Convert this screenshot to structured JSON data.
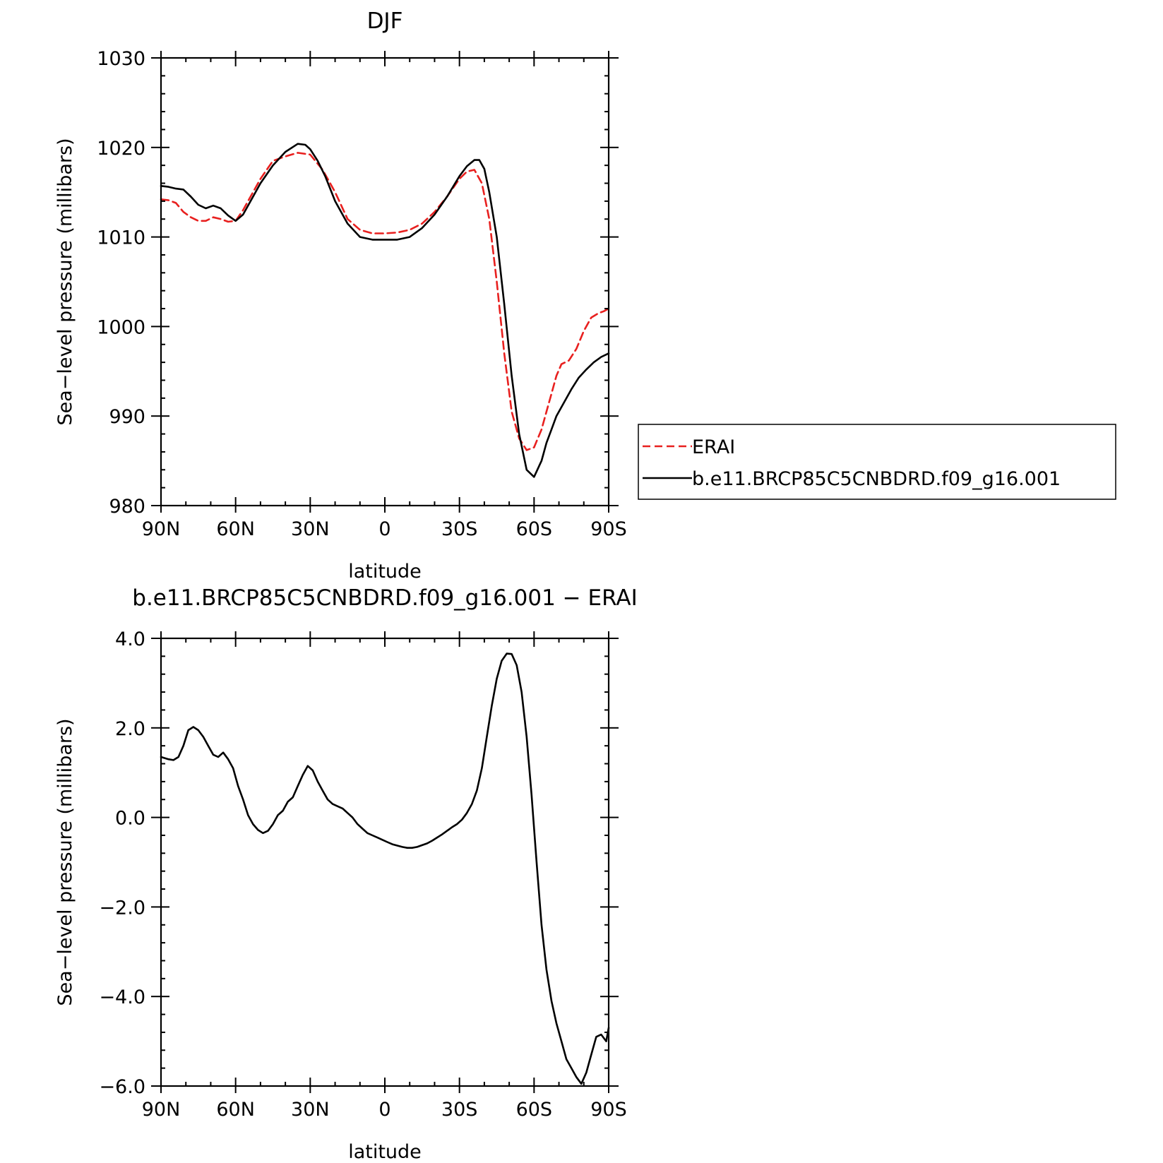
{
  "chart_data": [
    {
      "type": "line",
      "title": "DJF",
      "xlabel": "latitude",
      "ylabel": "Sea−level pressure (millibars)",
      "x_ticks": [
        {
          "value": 90,
          "label": "90N"
        },
        {
          "value": 60,
          "label": "60N"
        },
        {
          "value": 30,
          "label": "30N"
        },
        {
          "value": 0,
          "label": "0"
        },
        {
          "value": -30,
          "label": "30S"
        },
        {
          "value": -60,
          "label": "60S"
        },
        {
          "value": -90,
          "label": "90S"
        }
      ],
      "xlim": [
        90,
        -90
      ],
      "ylim": [
        980,
        1030
      ],
      "y_ticks": [
        {
          "value": 980,
          "label": "980"
        },
        {
          "value": 990,
          "label": "990"
        },
        {
          "value": 1000,
          "label": "1000"
        },
        {
          "value": 1010,
          "label": "1010"
        },
        {
          "value": 1020,
          "label": "1020"
        },
        {
          "value": 1030,
          "label": "1030"
        }
      ],
      "legend": {
        "position": "right",
        "entries": [
          "ERAI",
          "b.e11.BRCP85C5CNBDRD.f09_g16.001"
        ]
      },
      "series": [
        {
          "name": "ERAI",
          "color": "#e8201f",
          "dash": "dashed",
          "x": [
            90,
            87,
            84,
            81,
            78,
            75,
            72,
            69,
            66,
            63,
            60,
            57,
            54,
            50,
            45,
            40,
            35,
            30,
            25,
            20,
            15,
            10,
            5,
            0,
            -5,
            -10,
            -15,
            -20,
            -25,
            -30,
            -33,
            -36,
            -39,
            -42,
            -45,
            -48,
            -51,
            -54,
            -57,
            -60,
            -63,
            -65,
            -67,
            -69,
            -71,
            -74,
            -77,
            -80,
            -83,
            -86,
            -88,
            -90
          ],
          "values": [
            1014.2,
            1014.1,
            1013.8,
            1012.8,
            1012.2,
            1011.8,
            1011.8,
            1012.2,
            1012.0,
            1011.7,
            1011.8,
            1013.0,
            1014.5,
            1016.5,
            1018.5,
            1019.0,
            1019.4,
            1019.2,
            1017.5,
            1015.0,
            1012.0,
            1010.8,
            1010.4,
            1010.4,
            1010.5,
            1010.8,
            1011.5,
            1012.8,
            1014.5,
            1016.5,
            1017.3,
            1017.5,
            1016.0,
            1012.0,
            1005.0,
            997.0,
            990.5,
            987.5,
            986.2,
            986.5,
            988.5,
            990.5,
            992.5,
            994.5,
            995.8,
            996.2,
            997.5,
            999.5,
            1001.0,
            1001.5,
            1001.7,
            1002.0
          ]
        },
        {
          "name": "b.e11.BRCP85C5CNBDRD.f09_g16.001",
          "color": "#000000",
          "dash": "solid",
          "x": [
            90,
            87,
            84,
            81,
            78,
            75,
            72,
            69,
            66,
            63,
            60,
            57,
            54,
            50,
            45,
            40,
            35,
            32,
            30,
            27,
            24,
            20,
            15,
            10,
            5,
            0,
            -5,
            -10,
            -15,
            -20,
            -25,
            -30,
            -33,
            -36,
            -38,
            -40,
            -42,
            -45,
            -48,
            -51,
            -54,
            -57,
            -60,
            -63,
            -65,
            -67,
            -69,
            -72,
            -75,
            -78,
            -81,
            -84,
            -87,
            -90
          ],
          "values": [
            1015.7,
            1015.6,
            1015.4,
            1015.3,
            1014.5,
            1013.6,
            1013.2,
            1013.5,
            1013.2,
            1012.4,
            1011.8,
            1012.5,
            1014.0,
            1016.0,
            1018.0,
            1019.5,
            1020.4,
            1020.3,
            1019.8,
            1018.5,
            1016.8,
            1014.0,
            1011.5,
            1010.0,
            1009.7,
            1009.7,
            1009.7,
            1010.0,
            1011.0,
            1012.5,
            1014.5,
            1016.8,
            1017.9,
            1018.6,
            1018.6,
            1017.6,
            1015.0,
            1010.0,
            1002.5,
            994.5,
            988.0,
            984.0,
            983.2,
            985.0,
            987.0,
            988.5,
            990.0,
            991.5,
            993.0,
            994.3,
            995.2,
            996.0,
            996.6,
            997.0
          ]
        }
      ]
    },
    {
      "type": "line",
      "title": "b.e11.BRCP85C5CNBDRD.f09_g16.001 − ERAI",
      "xlabel": "latitude",
      "ylabel": "Sea−level pressure (millibars)",
      "x_ticks": [
        {
          "value": 90,
          "label": "90N"
        },
        {
          "value": 60,
          "label": "60N"
        },
        {
          "value": 30,
          "label": "30N"
        },
        {
          "value": 0,
          "label": "0"
        },
        {
          "value": -30,
          "label": "30S"
        },
        {
          "value": -60,
          "label": "60S"
        },
        {
          "value": -90,
          "label": "90S"
        }
      ],
      "xlim": [
        90,
        -90
      ],
      "ylim": [
        -6,
        4
      ],
      "y_ticks": [
        {
          "value": -6,
          "label": "−6.0"
        },
        {
          "value": -4,
          "label": "−4.0"
        },
        {
          "value": -2,
          "label": "−2.0"
        },
        {
          "value": 0,
          "label": "0.0"
        },
        {
          "value": 2,
          "label": "2.0"
        },
        {
          "value": 4,
          "label": "4.0"
        }
      ],
      "series": [
        {
          "color": "#000000",
          "dash": "solid",
          "x": [
            90,
            87,
            85,
            83,
            81,
            79,
            77,
            75,
            73,
            71,
            69,
            67,
            65,
            63,
            61,
            59,
            57,
            55,
            53,
            51,
            49,
            47,
            45,
            43,
            41,
            39,
            37,
            35,
            33,
            31,
            29,
            27,
            25,
            23,
            21,
            19,
            17,
            15,
            13,
            11,
            9,
            7,
            5,
            3,
            1,
            -1,
            -3,
            -5,
            -7,
            -9,
            -11,
            -13,
            -15,
            -17,
            -19,
            -21,
            -23,
            -25,
            -27,
            -29,
            -31,
            -33,
            -35,
            -37,
            -39,
            -41,
            -43,
            -45,
            -47,
            -49,
            -51,
            -53,
            -55,
            -57,
            -59,
            -61,
            -63,
            -65,
            -67,
            -69,
            -71,
            -73,
            -75,
            -77,
            -79,
            -81,
            -83,
            -85,
            -87,
            -89,
            -90
          ],
          "values": [
            1.35,
            1.3,
            1.28,
            1.35,
            1.6,
            1.95,
            2.02,
            1.95,
            1.8,
            1.6,
            1.4,
            1.35,
            1.45,
            1.3,
            1.1,
            0.7,
            0.4,
            0.05,
            -0.15,
            -0.28,
            -0.35,
            -0.3,
            -0.15,
            0.05,
            0.15,
            0.35,
            0.45,
            0.7,
            0.95,
            1.15,
            1.05,
            0.8,
            0.6,
            0.4,
            0.3,
            0.25,
            0.2,
            0.1,
            0.0,
            -0.15,
            -0.25,
            -0.35,
            -0.4,
            -0.45,
            -0.5,
            -0.55,
            -0.6,
            -0.63,
            -0.66,
            -0.68,
            -0.68,
            -0.66,
            -0.62,
            -0.58,
            -0.52,
            -0.45,
            -0.38,
            -0.3,
            -0.22,
            -0.15,
            -0.05,
            0.1,
            0.3,
            0.6,
            1.1,
            1.8,
            2.5,
            3.1,
            3.5,
            3.66,
            3.65,
            3.4,
            2.8,
            1.8,
            0.5,
            -1.0,
            -2.4,
            -3.4,
            -4.1,
            -4.6,
            -5.0,
            -5.4,
            -5.6,
            -5.8,
            -5.95,
            -5.7,
            -5.3,
            -4.9,
            -4.85,
            -5.0,
            -4.7
          ]
        }
      ]
    }
  ]
}
